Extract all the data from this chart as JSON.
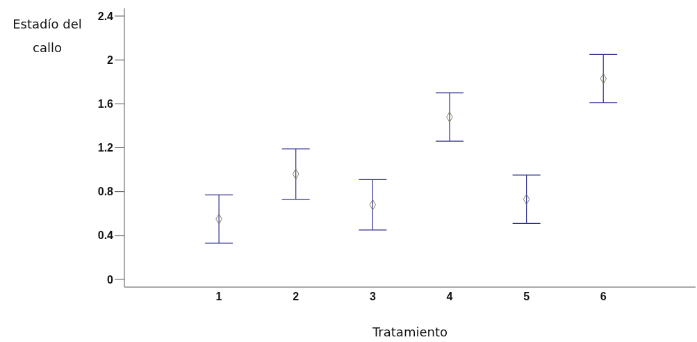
{
  "chart_data": {
    "type": "scatter",
    "xlabel": "Tratamiento",
    "ylabel": "Estadío del callo",
    "x": [
      1,
      2,
      3,
      4,
      5,
      6
    ],
    "xlim": [
      -0.23,
      7.2
    ],
    "xticks": [
      1,
      2,
      3,
      4,
      5,
      6
    ],
    "ylim": [
      -0.07,
      2.47
    ],
    "yticks": [
      0,
      0.4,
      0.8,
      1.2,
      1.6,
      2,
      2.4
    ],
    "series": [
      {
        "color": "#7f7f5f",
        "values": [
          0.55,
          0.96,
          0.68,
          1.48,
          0.73,
          1.83
        ],
        "errors": [
          0.22,
          0.23,
          0.23,
          0.22,
          0.22,
          0.22
        ]
      }
    ],
    "marker": "diamond",
    "grid": false,
    "legend": false
  }
}
